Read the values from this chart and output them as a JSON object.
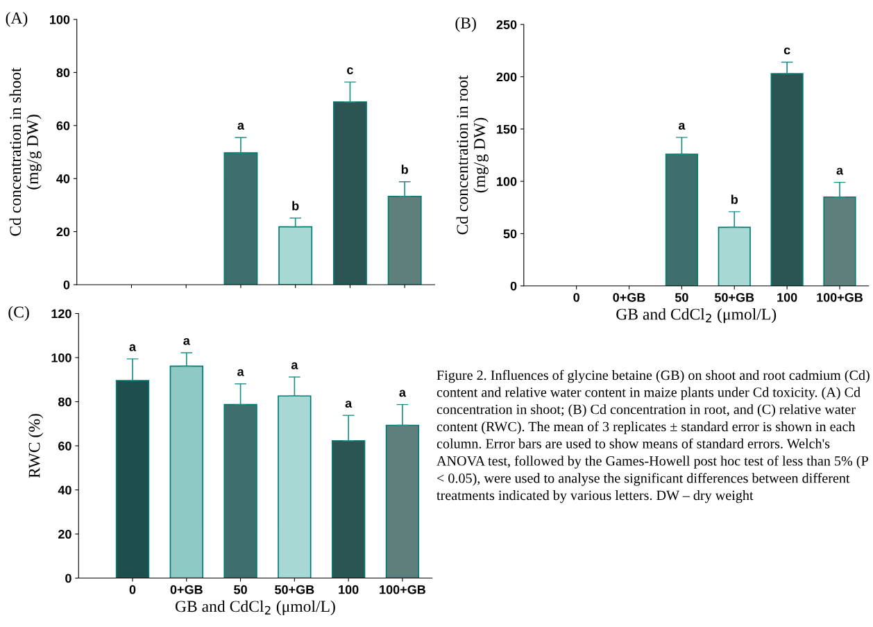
{
  "chart_data": [
    {
      "type": "bar",
      "title": "(A)",
      "ylabel": "Cd concentration in shoot\n(mg/g DW)",
      "categories": [
        null,
        null,
        null,
        null,
        null,
        null
      ],
      "values": [
        0,
        0,
        49.7,
        21.8,
        68.9,
        33.3
      ],
      "errors": [
        null,
        null,
        5.8,
        3.3,
        7.5,
        5.5
      ],
      "value_labels": [
        null,
        null,
        "a",
        "b",
        "c",
        "b"
      ],
      "colors": [
        "#1f4f4c",
        "#8fc9c4",
        "#3f6f6c",
        "#a8d8d4",
        "#2a5553",
        "#5f7f7d"
      ],
      "ylim": [
        0,
        100
      ],
      "yticks": [
        0,
        20,
        40,
        60,
        80,
        100
      ],
      "tick_labels": "y",
      "grid": false
    },
    {
      "type": "bar",
      "title": "(B)",
      "ylabel": "Cd concentration in root\n(mg/g DW)",
      "xlabel": "GB and CdCl$_{2}$ (μmol/L)",
      "categories": [
        "0",
        "0+GB",
        "50",
        "50+GB",
        "100",
        "100+GB"
      ],
      "values": [
        0,
        0,
        126,
        56,
        203,
        85
      ],
      "errors": [
        null,
        null,
        16,
        15,
        11,
        14
      ],
      "value_labels": [
        null,
        null,
        "a",
        "b",
        "c",
        "a"
      ],
      "colors": [
        "#1f4f4c",
        "#8fc9c4",
        "#3f6f6c",
        "#a8d8d4",
        "#2a5553",
        "#5f7f7d"
      ],
      "ylim": [
        0,
        250
      ],
      "yticks": [
        0,
        50,
        100,
        150,
        200,
        250
      ],
      "grid": false
    },
    {
      "type": "bar",
      "title": "(C)",
      "ylabel": "RWC (%)",
      "xlabel": "GB and CdCl$_{2}$ (μmol/L)",
      "categories": [
        "0",
        "0+GB",
        "50",
        "50+GB",
        "100",
        "100+GB"
      ],
      "values": [
        89.6,
        96.1,
        78.7,
        82.6,
        62.3,
        69.3
      ],
      "errors": [
        9.8,
        6.1,
        9.4,
        8.6,
        11.5,
        9.4
      ],
      "value_labels": [
        "a",
        "a",
        "a",
        "a",
        "a",
        "a"
      ],
      "colors": [
        "#1f4f4c",
        "#8fc9c4",
        "#3f6f6c",
        "#a8d8d4",
        "#2a5553",
        "#5f7f7d"
      ],
      "ylim": [
        0,
        120
      ],
      "yticks": [
        0,
        20,
        40,
        60,
        80,
        100,
        120
      ],
      "grid": false
    },
    {
      "type": "other",
      "annotations": [
        "Figure 2. Influences of glycine betaine (GB) on shoot and root cadmium (Cd) content and relative water content in maize plants under Cd toxicity. (A) Cd concentration in shoot; (B) Cd concentration in root, and (C) relative water content (RWC). The mean of 3 replicates ± standard error is shown in each column. Error bars are used to show means of standard errors. Welch's ANOVA test, followed by the Games-Howell post hoc test of less than 5% (P < 0.05), were used to analyse the significant differences between different treatments indicated by various letters. DW – dry weight"
      ]
    }
  ]
}
